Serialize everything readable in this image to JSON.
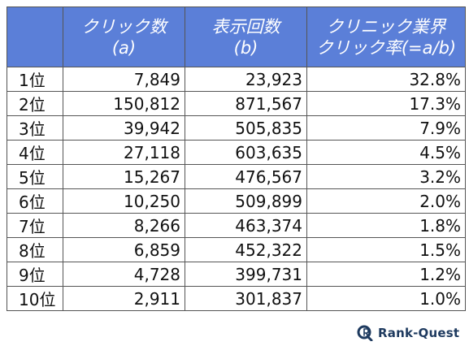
{
  "header": {
    "rank": "",
    "click_label": "クリック数",
    "click_sub": "(a)",
    "imp_label": "表示回数",
    "imp_sub": "(b)",
    "ctr_label": "クリニック業界",
    "ctr_sub": "クリック率(=a/b)"
  },
  "rows": [
    {
      "rank": "1位",
      "clicks": "7,849",
      "impressions": "23,923",
      "ctr": "32.8%"
    },
    {
      "rank": "2位",
      "clicks": "150,812",
      "impressions": "871,567",
      "ctr": "17.3%"
    },
    {
      "rank": "3位",
      "clicks": "39,942",
      "impressions": "505,835",
      "ctr": "7.9%"
    },
    {
      "rank": "4位",
      "clicks": "27,118",
      "impressions": "603,635",
      "ctr": "4.5%"
    },
    {
      "rank": "5位",
      "clicks": "15,267",
      "impressions": "476,567",
      "ctr": "3.2%"
    },
    {
      "rank": "6位",
      "clicks": "10,250",
      "impressions": "509,899",
      "ctr": "2.0%"
    },
    {
      "rank": "7位",
      "clicks": "8,266",
      "impressions": "463,374",
      "ctr": "1.8%"
    },
    {
      "rank": "8位",
      "clicks": "6,859",
      "impressions": "452,322",
      "ctr": "1.5%"
    },
    {
      "rank": "9位",
      "clicks": "4,728",
      "impressions": "399,731",
      "ctr": "1.2%"
    },
    {
      "rank": "10位",
      "clicks": "2,911",
      "impressions": "301,837",
      "ctr": "1.0%"
    }
  ],
  "logo": {
    "text": "Rank-Quest",
    "icon": "rank-quest-logo-icon",
    "color": "#1e3a5f"
  },
  "colors": {
    "header_bg": "#5b7fd8",
    "header_text": "#ffffff",
    "border": "#555555"
  }
}
